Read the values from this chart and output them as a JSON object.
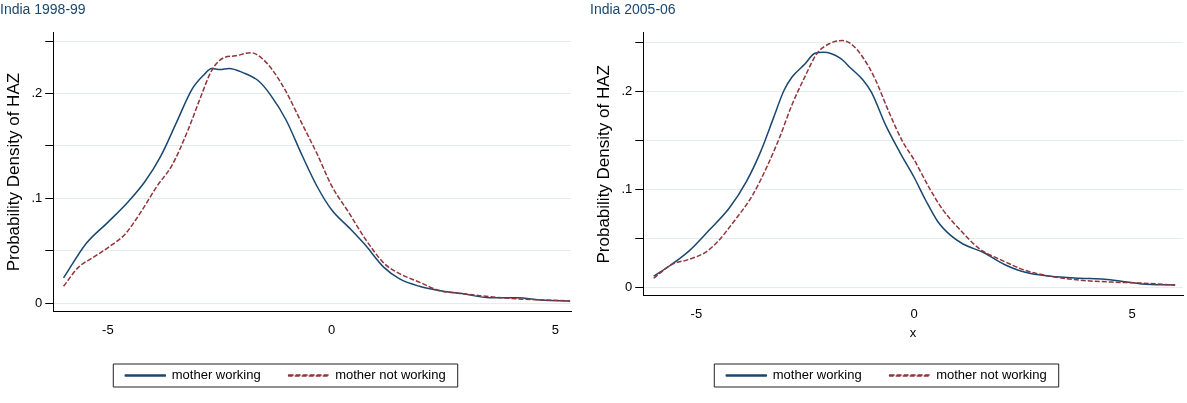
{
  "chart_data": [
    {
      "type": "line",
      "title": "India 1998-99",
      "ylabel": "Probability Density of HAZ",
      "xlim": [
        -6.22,
        5.35
      ],
      "ylim": [
        -0.008,
        0.258
      ],
      "xticks": [
        -5,
        0,
        5
      ],
      "yticks": [
        0,
        {
          "value": 0.05,
          "label": null
        },
        {
          "value": 0.1,
          "label": ".1"
        },
        {
          "value": 0.15,
          "label": null
        },
        {
          "value": 0.2,
          "label": ".2"
        },
        {
          "value": 0.25,
          "label": null
        }
      ],
      "grid": "y",
      "legend": "bottom",
      "series": [
        {
          "name": "mother working",
          "color": "#1a476f",
          "line_style": "solid",
          "x": [
            -5.99,
            -5.48,
            -5.0,
            -4.56,
            -4.17,
            -3.82,
            -3.47,
            -3.12,
            -2.85,
            -2.68,
            -2.5,
            -2.29,
            -1.98,
            -1.63,
            -1.37,
            -1.02,
            -0.67,
            -0.32,
            0,
            0.39,
            0.74,
            1.17,
            1.52,
            1.96,
            2.4,
            2.92,
            3.54,
            4.15,
            4.68,
            5.33
          ],
          "values": [
            0.024,
            0.057,
            0.077,
            0.096,
            0.116,
            0.14,
            0.172,
            0.204,
            0.218,
            0.224,
            0.223,
            0.224,
            0.22,
            0.212,
            0.199,
            0.175,
            0.142,
            0.111,
            0.089,
            0.072,
            0.056,
            0.034,
            0.023,
            0.016,
            0.012,
            0.009,
            0.005,
            0.005,
            0.003,
            0.002
          ]
        },
        {
          "name": "mother not working",
          "color": "#90353b",
          "line_style": "dashed",
          "x": [
            -5.99,
            -5.66,
            -5.31,
            -4.96,
            -4.61,
            -4.26,
            -3.91,
            -3.56,
            -3.21,
            -2.94,
            -2.68,
            -2.42,
            -2.15,
            -1.8,
            -1.54,
            -1.28,
            -1.02,
            -0.67,
            -0.32,
            0,
            0.39,
            0.74,
            1.17,
            1.52,
            1.96,
            2.4,
            2.92,
            3.54,
            4.15,
            4.68,
            5.33
          ],
          "values": [
            0.016,
            0.034,
            0.044,
            0.054,
            0.066,
            0.087,
            0.111,
            0.132,
            0.165,
            0.195,
            0.222,
            0.234,
            0.236,
            0.239,
            0.233,
            0.22,
            0.202,
            0.172,
            0.142,
            0.112,
            0.086,
            0.062,
            0.038,
            0.028,
            0.02,
            0.012,
            0.009,
            0.006,
            0.004,
            0.003,
            0.002
          ]
        }
      ]
    },
    {
      "type": "line",
      "title": "India 2005-06",
      "ylabel": "Probability Density of HAZ",
      "xlabel": "x",
      "xlim": [
        -6.22,
        6.17
      ],
      "ylim": [
        -0.009,
        0.26
      ],
      "xticks": [
        -5,
        0,
        5
      ],
      "yticks": [
        0,
        {
          "value": 0.05,
          "label": null
        },
        {
          "value": 0.1,
          "label": ".1"
        },
        {
          "value": 0.15,
          "label": null
        },
        {
          "value": 0.2,
          "label": ".2"
        },
        {
          "value": 0.25,
          "label": null
        }
      ],
      "grid": "y",
      "legend": "bottom",
      "series": [
        {
          "name": "mother working",
          "color": "#1a476f",
          "line_style": "solid",
          "x": [
            -5.98,
            -5.57,
            -5.14,
            -4.71,
            -4.24,
            -3.85,
            -3.52,
            -3.23,
            -2.99,
            -2.8,
            -2.51,
            -2.28,
            -2.08,
            -1.7,
            -1.46,
            -1.18,
            -0.98,
            -0.65,
            -0.32,
            0,
            0.26,
            0.54,
            0.83,
            1.12,
            1.6,
            2.07,
            2.55,
            3.13,
            3.8,
            4.37,
            4.75,
            5.23,
            5.99
          ],
          "values": [
            0.011,
            0.023,
            0.038,
            0.058,
            0.081,
            0.108,
            0.139,
            0.173,
            0.201,
            0.215,
            0.228,
            0.239,
            0.24,
            0.234,
            0.224,
            0.212,
            0.199,
            0.165,
            0.137,
            0.112,
            0.089,
            0.067,
            0.053,
            0.044,
            0.035,
            0.023,
            0.015,
            0.011,
            0.009,
            0.008,
            0.006,
            0.003,
            0.002
          ]
        },
        {
          "name": "mother not working",
          "color": "#90353b",
          "line_style": "dashed",
          "x": [
            -5.98,
            -5.57,
            -5.19,
            -4.81,
            -4.52,
            -4.14,
            -3.71,
            -3.37,
            -3.09,
            -2.8,
            -2.51,
            -2.23,
            -1.94,
            -1.65,
            -1.46,
            -1.18,
            -0.89,
            -0.6,
            -0.27,
            0,
            0.35,
            0.64,
            1.02,
            1.5,
            1.98,
            2.55,
            3.13,
            3.8,
            4.56,
            5.23,
            5.99
          ],
          "values": [
            0.009,
            0.023,
            0.028,
            0.035,
            0.046,
            0.067,
            0.094,
            0.124,
            0.153,
            0.187,
            0.215,
            0.239,
            0.249,
            0.252,
            0.249,
            0.235,
            0.212,
            0.181,
            0.149,
            0.13,
            0.101,
            0.08,
            0.06,
            0.039,
            0.028,
            0.017,
            0.011,
            0.007,
            0.005,
            0.004,
            0.002
          ]
        }
      ]
    }
  ]
}
